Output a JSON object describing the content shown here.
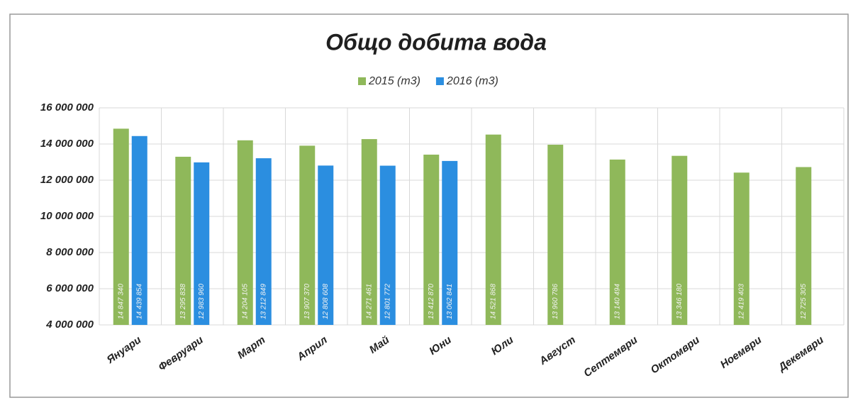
{
  "chart_data": {
    "type": "bar",
    "title": "Общо добита вода",
    "categories": [
      "Януари",
      "Февруари",
      "Март",
      "Април",
      "Май",
      "Юни",
      "Юли",
      "Август",
      "Септември",
      "Октомври",
      "Ноември",
      "Декември"
    ],
    "series": [
      {
        "name": "2015 (m3)",
        "color": "#8fb85a",
        "values": [
          14847340,
          13295838,
          14204105,
          13907370,
          14271461,
          13412870,
          14521868,
          13960786,
          13140494,
          13346180,
          12419403,
          12725305
        ],
        "value_labels": [
          "14 847 340",
          "13 295 838",
          "14 204 105",
          "13 907 370",
          "14 271 461",
          "13 412 870",
          "14 521 868",
          "13 960 786",
          "13 140 494",
          "13 346 180",
          "12 419 403",
          "12 725 305"
        ]
      },
      {
        "name": "2016 (m3)",
        "color": "#2b8ee0",
        "values": [
          14439854,
          12983960,
          13212849,
          12808608,
          12801772,
          13062841,
          null,
          null,
          null,
          null,
          null,
          null
        ],
        "value_labels": [
          "14 439 854",
          "12 983 960",
          "13 212 849",
          "12 808 608",
          "12 801 772",
          "13 062 841",
          null,
          null,
          null,
          null,
          null,
          null
        ]
      }
    ],
    "ylim": [
      4000000,
      16000000
    ],
    "yticks": [
      {
        "value": 4000000,
        "label": "4 000 000"
      },
      {
        "value": 6000000,
        "label": "6 000 000"
      },
      {
        "value": 8000000,
        "label": "8 000 000"
      },
      {
        "value": 10000000,
        "label": "10 000 000"
      },
      {
        "value": 12000000,
        "label": "12 000 000"
      },
      {
        "value": 14000000,
        "label": "14 000 000"
      },
      {
        "value": 16000000,
        "label": "16 000 000"
      }
    ],
    "grid": true,
    "legend": "top"
  }
}
